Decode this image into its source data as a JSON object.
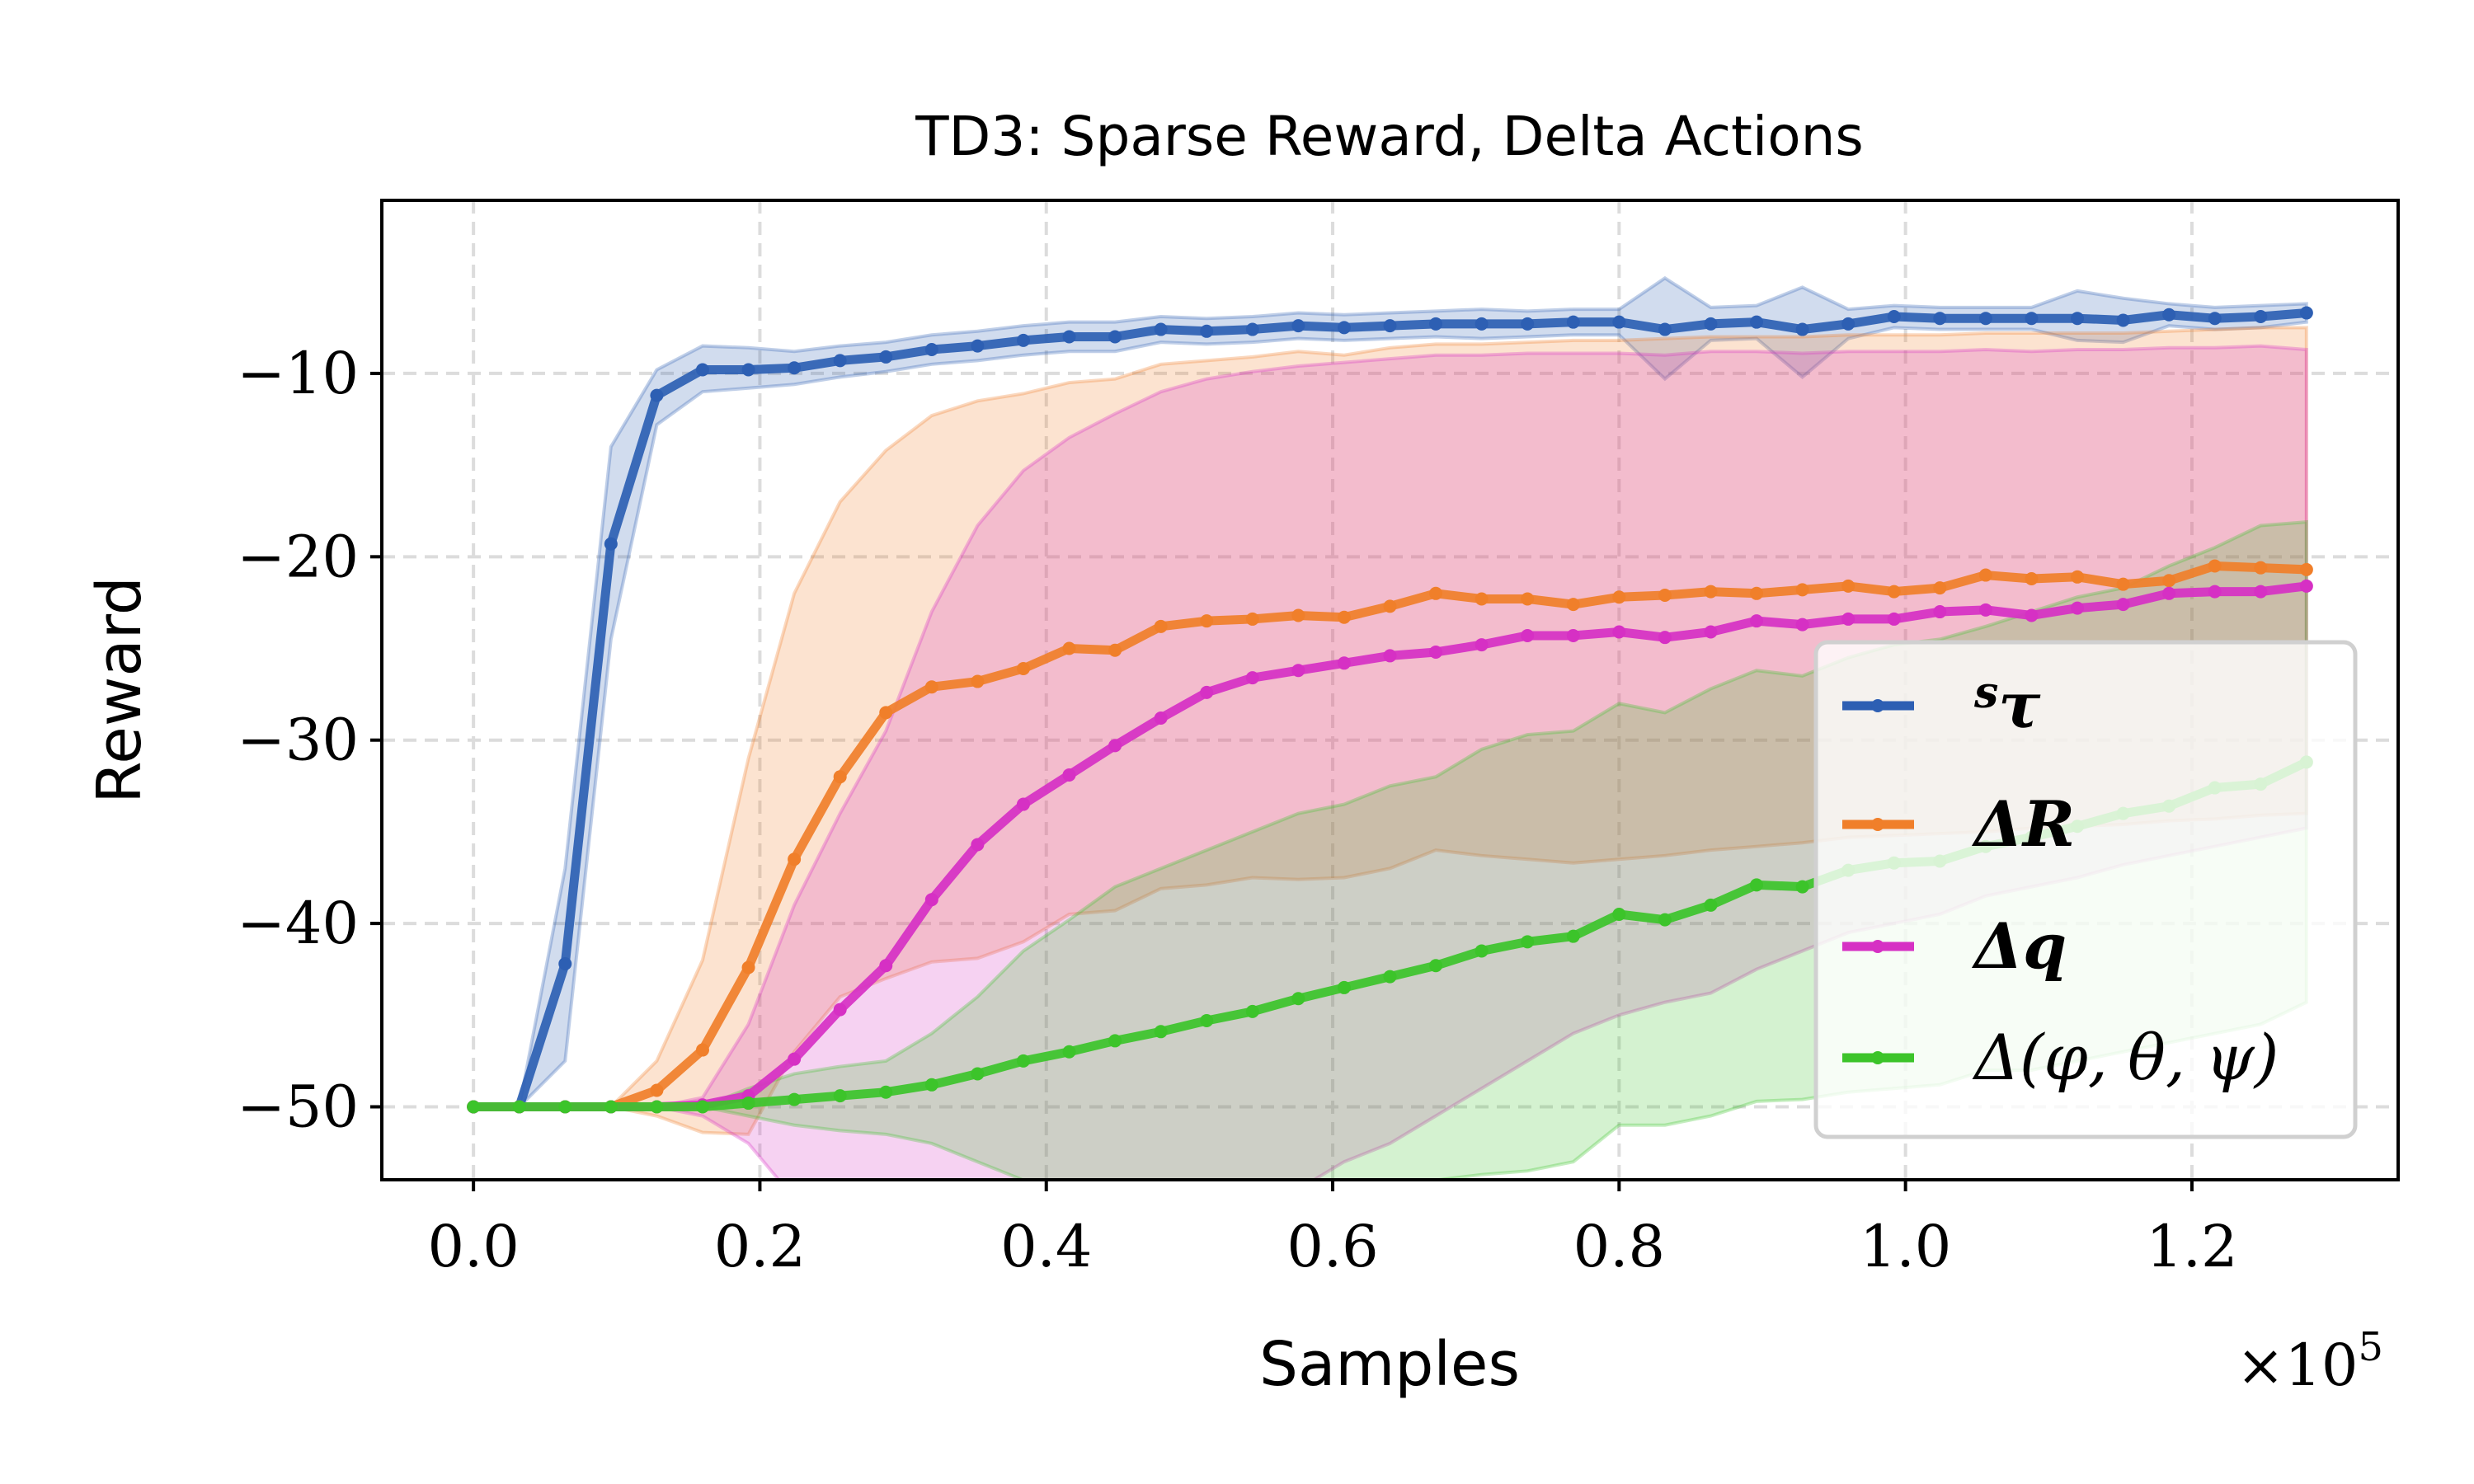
{
  "chart_data": {
    "type": "line",
    "title": "TD3: Sparse Reward, Delta Actions",
    "xlabel": "Samples",
    "ylabel": "Reward",
    "x_multiplier_label": "×10",
    "x_multiplier_exp": "5",
    "xlim": [
      -0.064,
      1.344
    ],
    "ylim": [
      -53.98,
      -0.56
    ],
    "xticks": [
      0.0,
      0.2,
      0.4,
      0.6,
      0.8,
      1.0,
      1.2
    ],
    "xtick_labels": [
      "0.0",
      "0.2",
      "0.4",
      "0.6",
      "0.8",
      "1.0",
      "1.2"
    ],
    "yticks": [
      -10,
      -20,
      -30,
      -40,
      -50
    ],
    "ytick_labels": [
      "−10",
      "−20",
      "−30",
      "−40",
      "−50"
    ],
    "grid": true,
    "legend_position": "lower-right",
    "x_step": 0.032,
    "series": [
      {
        "name": "sτ",
        "legend_sup": "s",
        "legend_main": "τ",
        "color": "#2d5fb3",
        "mean": [
          -50,
          -50,
          -42.2,
          -19.3,
          -11.2,
          -9.8,
          -9.8,
          -9.7,
          -9.3,
          -9.1,
          -8.7,
          -8.5,
          -8.2,
          -8.0,
          -8.0,
          -7.6,
          -7.7,
          -7.6,
          -7.4,
          -7.5,
          -7.4,
          -7.3,
          -7.3,
          -7.3,
          -7.2,
          -7.2,
          -7.6,
          -7.3,
          -7.2,
          -7.6,
          -7.3,
          -6.9,
          -7.0,
          -7.0,
          -7.0,
          -7.0,
          -7.1,
          -6.8,
          -7.0,
          -6.9,
          -6.7
        ],
        "upper": [
          -50,
          -50,
          -37,
          -14,
          -9.8,
          -8.5,
          -8.6,
          -8.8,
          -8.5,
          -8.3,
          -7.9,
          -7.7,
          -7.4,
          -7.2,
          -7.2,
          -6.9,
          -7.0,
          -6.9,
          -6.7,
          -6.8,
          -6.7,
          -6.6,
          -6.5,
          -6.6,
          -6.5,
          -6.5,
          -4.8,
          -6.4,
          -6.3,
          -5.3,
          -6.5,
          -6.3,
          -6.4,
          -6.4,
          -6.4,
          -5.5,
          -5.9,
          -6.2,
          -6.4,
          -6.3,
          -6.2
        ],
        "lower": [
          -50,
          -50,
          -47.5,
          -24.5,
          -12.8,
          -11.0,
          -10.8,
          -10.6,
          -10.2,
          -9.9,
          -9.5,
          -9.3,
          -9.0,
          -8.8,
          -8.8,
          -8.3,
          -8.4,
          -8.3,
          -8.1,
          -8.2,
          -8.1,
          -8.0,
          -8.1,
          -8.0,
          -7.9,
          -7.9,
          -10.3,
          -8.2,
          -8.1,
          -10.2,
          -8.1,
          -7.5,
          -7.6,
          -7.6,
          -7.6,
          -8.2,
          -8.3,
          -7.4,
          -7.6,
          -7.5,
          -7.2
        ]
      },
      {
        "name": "ΔR",
        "legend_sup": "",
        "legend_main": "ΔR",
        "color": "#f07f2a",
        "mean": [
          -50,
          -50,
          -50,
          -50,
          -49.1,
          -46.9,
          -42.4,
          -36.5,
          -32,
          -28.5,
          -27.1,
          -26.8,
          -26.1,
          -25,
          -25.1,
          -23.8,
          -23.5,
          -23.4,
          -23.2,
          -23.3,
          -22.7,
          -22.0,
          -22.3,
          -22.3,
          -22.6,
          -22.2,
          -22.1,
          -21.9,
          -22.0,
          -21.8,
          -21.6,
          -21.9,
          -21.7,
          -21.0,
          -21.2,
          -21.1,
          -21.5,
          -21.3,
          -20.5,
          -20.6,
          -20.7
        ],
        "upper": [
          -50,
          -50,
          -50,
          -50,
          -47.5,
          -42,
          -31,
          -22,
          -17,
          -14.2,
          -12.3,
          -11.5,
          -11.1,
          -10.5,
          -10.3,
          -9.5,
          -9.3,
          -9.1,
          -8.8,
          -9.0,
          -8.6,
          -8.4,
          -8.4,
          -8.3,
          -8.2,
          -8.2,
          -8.1,
          -8.0,
          -8.0,
          -8.0,
          -7.9,
          -7.9,
          -7.9,
          -7.8,
          -7.8,
          -7.8,
          -7.8,
          -7.7,
          -7.6,
          -7.5,
          -7.5
        ],
        "lower": [
          -50,
          -50,
          -50,
          -50,
          -50.5,
          -51.4,
          -51.5,
          -47,
          -44,
          -43,
          -42.1,
          -41.9,
          -41,
          -39.5,
          -39.3,
          -38.1,
          -37.9,
          -37.5,
          -37.6,
          -37.5,
          -37,
          -36,
          -36.3,
          -36.5,
          -36.7,
          -36.5,
          -36.3,
          -36,
          -35.8,
          -35.6,
          -35.3,
          -35.2,
          -35.1,
          -35.0,
          -34.8,
          -34.7,
          -34.6,
          -34.4,
          -34.3,
          -34.1,
          -34.0
        ]
      },
      {
        "name": "Δq",
        "legend_sup": "",
        "legend_main": "Δq",
        "color": "#d630c4",
        "mean": [
          -50,
          -50,
          -50,
          -50,
          -50,
          -49.9,
          -49.4,
          -47.4,
          -44.7,
          -42.3,
          -38.7,
          -35.7,
          -33.5,
          -31.9,
          -30.3,
          -28.8,
          -27.4,
          -26.6,
          -26.2,
          -25.8,
          -25.4,
          -25.2,
          -24.8,
          -24.3,
          -24.3,
          -24.1,
          -24.4,
          -24.1,
          -23.5,
          -23.7,
          -23.4,
          -23.4,
          -23.0,
          -22.9,
          -23.2,
          -22.8,
          -22.6,
          -22.0,
          -21.9,
          -21.9,
          -21.6
        ],
        "upper": [
          -50,
          -50,
          -50,
          -50,
          -50,
          -49.5,
          -45.5,
          -39,
          -34,
          -29.5,
          -23,
          -18.3,
          -15.3,
          -13.5,
          -12.2,
          -11.0,
          -10.3,
          -9.9,
          -9.6,
          -9.4,
          -9.2,
          -9.0,
          -9.0,
          -8.9,
          -8.9,
          -8.9,
          -9.0,
          -8.8,
          -8.8,
          -8.9,
          -8.8,
          -8.8,
          -8.8,
          -8.7,
          -8.8,
          -8.7,
          -8.7,
          -8.6,
          -8.6,
          -8.5,
          -8.7
        ],
        "lower": [
          -50,
          -50,
          -50,
          -50,
          -50,
          -50.5,
          -52,
          -55,
          -57,
          -57,
          -57,
          -57,
          -57,
          -57,
          -57,
          -57,
          -57,
          -56,
          -54.5,
          -53,
          -52,
          -50.5,
          -49,
          -47.5,
          -46,
          -45,
          -44.3,
          -43.8,
          -42.5,
          -41.5,
          -40.5,
          -40,
          -39.5,
          -38.5,
          -38,
          -37.5,
          -36.8,
          -36.3,
          -35.8,
          -35.3,
          -34.8
        ]
      },
      {
        "name": "Δ(φ, θ, ψ)",
        "legend_sup": "",
        "legend_main": "Δ(φ, θ, ψ)",
        "color": "#3cc42a",
        "mean": [
          -50,
          -50,
          -50,
          -50,
          -50,
          -50,
          -49.8,
          -49.6,
          -49.4,
          -49.2,
          -48.8,
          -48.2,
          -47.5,
          -47.0,
          -46.4,
          -45.9,
          -45.3,
          -44.8,
          -44.1,
          -43.5,
          -42.9,
          -42.3,
          -41.5,
          -41.0,
          -40.7,
          -39.5,
          -39.8,
          -39.0,
          -37.9,
          -38.0,
          -37.1,
          -36.7,
          -36.6,
          -35.8,
          -35.3,
          -34.7,
          -34.0,
          -33.6,
          -32.6,
          -32.4,
          -31.2
        ],
        "upper": [
          -50,
          -50,
          -50,
          -50,
          -50,
          -50,
          -49,
          -48.2,
          -47.8,
          -47.5,
          -46,
          -44,
          -41.5,
          -39.8,
          -38,
          -37,
          -36,
          -35,
          -34,
          -33.5,
          -32.5,
          -32,
          -30.5,
          -29.7,
          -29.5,
          -28,
          -28.5,
          -27.2,
          -26.2,
          -26.5,
          -25.5,
          -24.8,
          -24.5,
          -23.8,
          -23,
          -22.2,
          -21.7,
          -20.5,
          -19.5,
          -18.3,
          -18.1
        ],
        "lower": [
          -50,
          -50,
          -50,
          -50,
          -50,
          -50,
          -50.5,
          -51,
          -51.3,
          -51.5,
          -52,
          -53,
          -54,
          -55,
          -55,
          -55,
          -55,
          -55,
          -55,
          -55,
          -55,
          -54,
          -53.7,
          -53.5,
          -53,
          -51,
          -51,
          -50.5,
          -49.7,
          -49.6,
          -49.2,
          -49,
          -48.8,
          -48,
          -48,
          -47.5,
          -47,
          -46.5,
          -46,
          -45.5,
          -44.3
        ]
      }
    ]
  }
}
